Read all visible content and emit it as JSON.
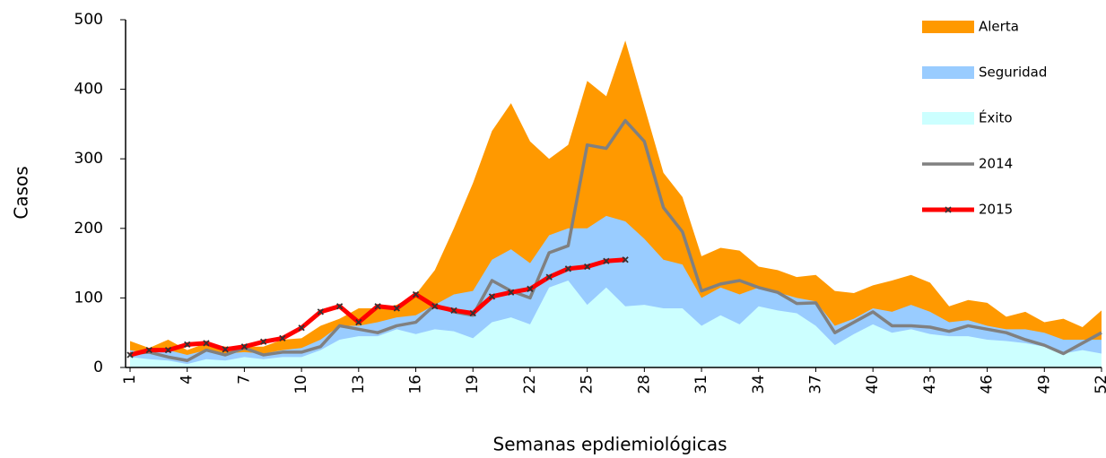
{
  "chart_data": {
    "type": "line",
    "xlabel": "Semanas epdiemiológicas",
    "ylabel": "Casos",
    "categories": [
      "1",
      null,
      null,
      "4",
      null,
      null,
      "7",
      null,
      null,
      "10",
      null,
      null,
      "13",
      null,
      null,
      "16",
      null,
      null,
      "19",
      null,
      null,
      "22",
      null,
      null,
      "25",
      null,
      null,
      "28",
      null,
      null,
      "31",
      null,
      null,
      "34",
      null,
      null,
      "37",
      null,
      null,
      "40",
      null,
      null,
      "43",
      null,
      null,
      "46",
      null,
      null,
      "49",
      null,
      null,
      "52"
    ],
    "ylim": [
      0,
      500
    ],
    "yticks": [
      0,
      100,
      200,
      300,
      400,
      500
    ],
    "series": [
      {
        "name": "Alerta",
        "color": "#ff9900",
        "style": "area",
        "values": [
          38,
          28,
          40,
          25,
          35,
          30,
          30,
          30,
          40,
          42,
          60,
          70,
          85,
          85,
          90,
          105,
          140,
          200,
          265,
          340,
          380,
          325,
          300,
          320,
          412,
          390,
          470,
          375,
          280,
          245,
          160,
          172,
          168,
          145,
          140,
          130,
          133,
          110,
          107,
          118,
          125,
          133,
          122,
          88,
          97,
          93,
          73,
          80,
          65,
          70,
          58,
          82
        ]
      },
      {
        "name": "Seguridad",
        "color": "#99ccff",
        "style": "area",
        "values": [
          25,
          20,
          25,
          18,
          25,
          20,
          22,
          20,
          25,
          28,
          40,
          60,
          60,
          65,
          72,
          75,
          90,
          105,
          110,
          155,
          170,
          150,
          190,
          200,
          200,
          218,
          210,
          185,
          155,
          148,
          100,
          115,
          105,
          115,
          108,
          100,
          95,
          60,
          70,
          85,
          80,
          90,
          80,
          65,
          68,
          60,
          55,
          55,
          50,
          40,
          40,
          40
        ]
      },
      {
        "name": "Éxito",
        "color": "#ccffff",
        "style": "area",
        "values": [
          15,
          12,
          10,
          5,
          12,
          10,
          15,
          12,
          15,
          15,
          25,
          40,
          45,
          45,
          55,
          48,
          55,
          52,
          42,
          65,
          72,
          62,
          115,
          125,
          90,
          115,
          88,
          90,
          85,
          85,
          60,
          75,
          62,
          88,
          82,
          78,
          60,
          32,
          48,
          62,
          50,
          55,
          48,
          45,
          45,
          40,
          38,
          35,
          30,
          20,
          25,
          20
        ]
      },
      {
        "name": "2014",
        "color": "#808080",
        "style": "line",
        "values": [
          20,
          22,
          15,
          10,
          25,
          18,
          28,
          18,
          22,
          22,
          30,
          60,
          55,
          50,
          60,
          65,
          90,
          80,
          75,
          125,
          110,
          100,
          165,
          175,
          320,
          315,
          355,
          325,
          230,
          195,
          110,
          120,
          125,
          115,
          108,
          92,
          93,
          50,
          65,
          80,
          60,
          60,
          58,
          52,
          60,
          55,
          50,
          40,
          32,
          20,
          35,
          50
        ]
      },
      {
        "name": "2015",
        "color": "#ff0000",
        "style": "marked-line",
        "values": [
          18,
          25,
          25,
          33,
          35,
          26,
          30,
          37,
          42,
          57,
          80,
          88,
          65,
          88,
          85,
          105,
          88,
          82,
          78,
          102,
          108,
          113,
          130,
          142,
          145,
          153,
          155,
          null,
          null,
          null,
          null,
          null,
          null,
          null,
          null,
          null,
          null,
          null,
          null,
          null,
          null,
          null,
          null,
          null,
          null,
          null,
          null,
          null,
          null,
          null,
          null,
          null
        ]
      }
    ]
  }
}
